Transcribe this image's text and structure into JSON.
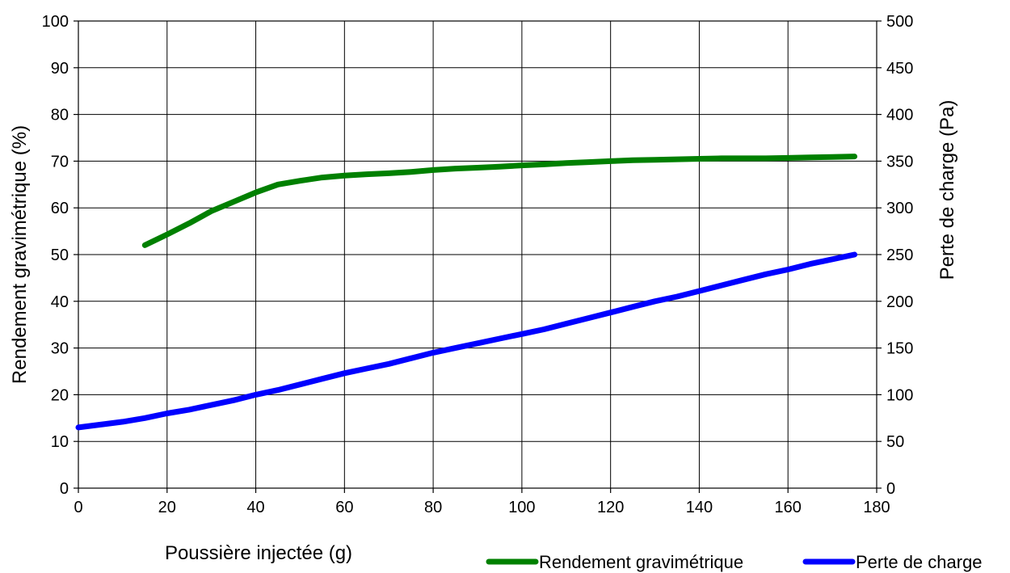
{
  "chart_data": {
    "type": "line",
    "xlabel": "Poussière injectée (g)",
    "ylabel_left": "Rendement gravimétrique (%)",
    "ylabel_right": "Perte de charge (Pa)",
    "xlim": [
      0,
      180
    ],
    "ylim_left": [
      0,
      100
    ],
    "ylim_right": [
      0,
      500
    ],
    "x_ticks": [
      0,
      20,
      40,
      60,
      80,
      100,
      120,
      140,
      160,
      180
    ],
    "y_left_ticks": [
      0,
      10,
      20,
      30,
      40,
      50,
      60,
      70,
      80,
      90,
      100
    ],
    "y_right_ticks": [
      0,
      50,
      100,
      150,
      200,
      250,
      300,
      350,
      400,
      450,
      500
    ],
    "grid": true,
    "legend_position": "bottom-right",
    "series": [
      {
        "name": "Rendement gravimétrique",
        "axis": "left",
        "color": "#008000",
        "x": [
          15,
          20,
          25,
          30,
          35,
          40,
          45,
          50,
          55,
          60,
          65,
          70,
          75,
          80,
          85,
          90,
          95,
          100,
          105,
          110,
          115,
          120,
          125,
          130,
          135,
          140,
          145,
          150,
          155,
          160,
          165,
          170,
          175
        ],
        "y": [
          52,
          54.3,
          56.7,
          59.3,
          61.3,
          63.3,
          65,
          65.8,
          66.5,
          66.9,
          67.2,
          67.4,
          67.7,
          68.1,
          68.4,
          68.6,
          68.8,
          69.1,
          69.3,
          69.6,
          69.8,
          70,
          70.2,
          70.3,
          70.4,
          70.5,
          70.6,
          70.6,
          70.6,
          70.7,
          70.8,
          70.9,
          71
        ]
      },
      {
        "name": "Perte de charge",
        "axis": "right",
        "color": "#0000ff",
        "x": [
          0,
          5,
          10,
          15,
          20,
          25,
          30,
          35,
          40,
          45,
          50,
          55,
          60,
          65,
          70,
          75,
          80,
          85,
          90,
          95,
          100,
          105,
          110,
          115,
          120,
          125,
          130,
          135,
          140,
          145,
          150,
          155,
          160,
          165,
          170,
          175
        ],
        "y": [
          65,
          68,
          71,
          75,
          80,
          84,
          89,
          94,
          100,
          105,
          111,
          117,
          123,
          128,
          133,
          139,
          145,
          150,
          155,
          160,
          165,
          170,
          176,
          182,
          188,
          194,
          200,
          205,
          211,
          217,
          223,
          229,
          234,
          240,
          245,
          250
        ]
      }
    ]
  }
}
